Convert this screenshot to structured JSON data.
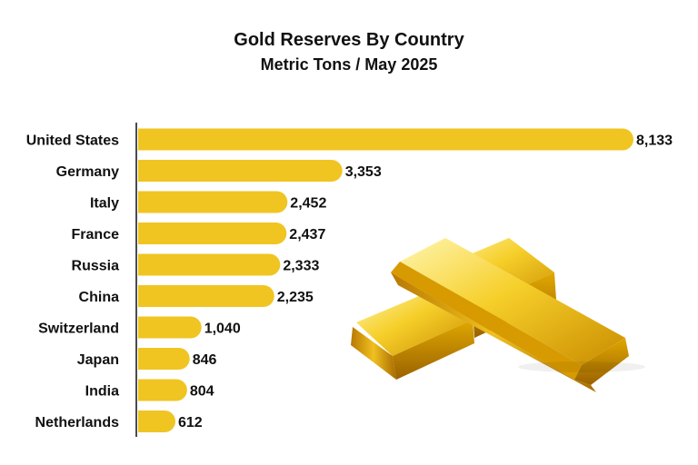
{
  "chart_data": {
    "type": "bar",
    "orientation": "horizontal",
    "title": "Gold Reserves By Country",
    "subtitle": "Metric Tons / May 2025",
    "categories": [
      "United States",
      "Germany",
      "Italy",
      "France",
      "Russia",
      "China",
      "Switzerland",
      "Japan",
      "India",
      "Netherlands"
    ],
    "values": [
      8133,
      3353,
      2452,
      2437,
      2333,
      2235,
      1040,
      846,
      804,
      612
    ],
    "value_labels": [
      "8,133",
      "3,353",
      "2,452",
      "2,437",
      "2,333",
      "2,235",
      "1,040",
      "846",
      "804",
      "612"
    ],
    "bar_color": "#f0c522",
    "xlim": [
      0,
      8133
    ],
    "grid": false,
    "legend": "none"
  },
  "illustration": {
    "icon": "gold-bars-icon"
  }
}
